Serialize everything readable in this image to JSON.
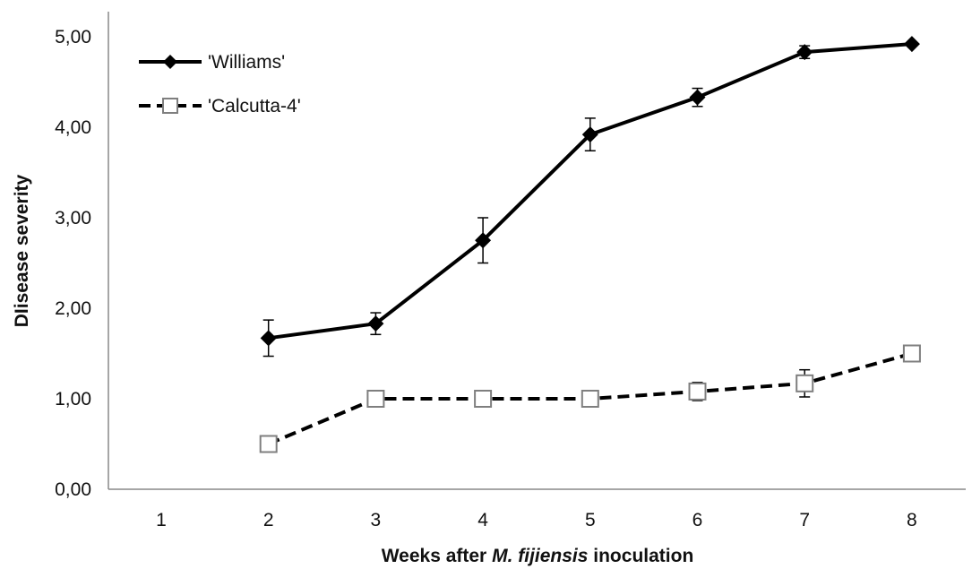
{
  "chart_data": {
    "type": "line",
    "title": "",
    "xlabel_parts": [
      "Weeks after ",
      "M. fijiensis",
      " inoculation"
    ],
    "ylabel": "DIisease severity",
    "categories": [
      "1",
      "2",
      "3",
      "4",
      "5",
      "6",
      "7",
      "8"
    ],
    "x": [
      1,
      2,
      3,
      4,
      5,
      6,
      7,
      8
    ],
    "ylim": [
      0,
      5
    ],
    "yticks": [
      0,
      1,
      2,
      3,
      4,
      5
    ],
    "ytick_labels": [
      "0,00",
      "1,00",
      "2,00",
      "3,00",
      "4,00",
      "5,00"
    ],
    "grid": false,
    "legend_position": "top-left",
    "series": [
      {
        "name": "'Williams'",
        "style": "solid",
        "marker": "diamond",
        "color": "#000000",
        "x": [
          2,
          3,
          4,
          5,
          6,
          7,
          8
        ],
        "values": [
          1.67,
          1.83,
          2.75,
          3.92,
          4.33,
          4.83,
          4.92
        ],
        "errors": [
          0.2,
          0.12,
          0.25,
          0.18,
          0.1,
          0.07,
          0.0
        ]
      },
      {
        "name": "'Calcutta-4'",
        "style": "dashed",
        "marker": "square-open",
        "color": "#000000",
        "marker_color": "#7f7f7f",
        "x": [
          2,
          3,
          4,
          5,
          6,
          7,
          8
        ],
        "values": [
          0.5,
          1.0,
          1.0,
          1.0,
          1.08,
          1.17,
          1.5
        ],
        "errors": [
          0.0,
          0.0,
          0.0,
          0.0,
          0.1,
          0.15,
          0.0
        ]
      }
    ]
  }
}
